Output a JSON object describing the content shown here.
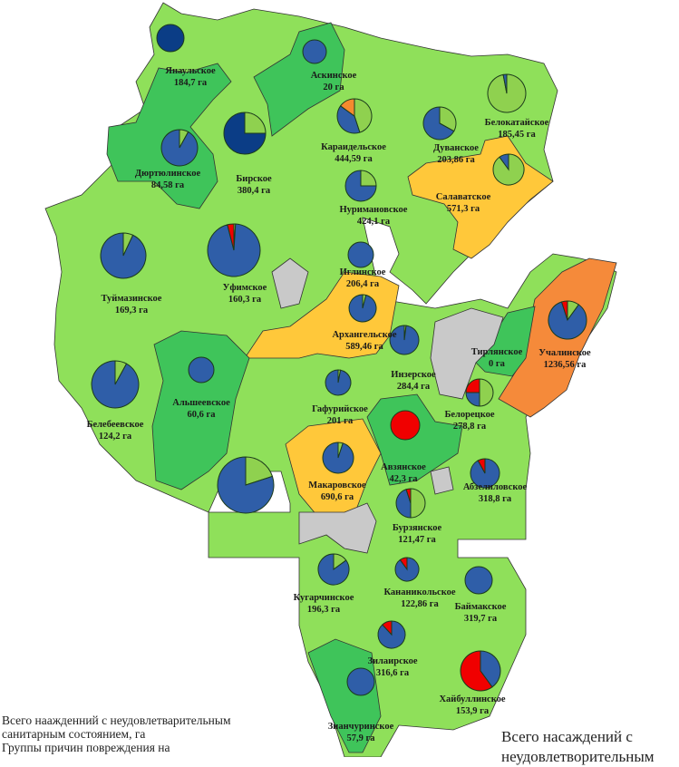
{
  "colors": {
    "navy": "#0b3d86",
    "blue": "#2f5ea8",
    "green": "#8fd14f",
    "red": "#f00000",
    "orange": "#f58a2e",
    "region_light": "#8fe05a",
    "region_medium": "#3fc45a",
    "region_yellow": "#ffc83a",
    "region_orange": "#f58a3a",
    "region_gray": "#c9c9c9"
  },
  "districts": [
    {
      "name": "Янаульское",
      "area": "184,7 га",
      "pie": [
        {
          "c": "navy",
          "v": 100
        }
      ]
    },
    {
      "name": "Аскинское",
      "area": "20 га",
      "pie": [
        {
          "c": "blue",
          "v": 100
        }
      ]
    },
    {
      "name": "Дюртюлинское",
      "area": "84,58 га",
      "pie": [
        {
          "c": "green",
          "v": 8
        },
        {
          "c": "blue",
          "v": 92
        }
      ]
    },
    {
      "name": "Бирское",
      "area": "380,4 га",
      "pie": [
        {
          "c": "green",
          "v": 25
        },
        {
          "c": "navy",
          "v": 75
        }
      ]
    },
    {
      "name": "Караидельское",
      "area": "444,59 га",
      "pie": [
        {
          "c": "green",
          "v": 45
        },
        {
          "c": "blue",
          "v": 40
        },
        {
          "c": "orange",
          "v": 15
        }
      ]
    },
    {
      "name": "Дуванское",
      "area": "203,86 га",
      "pie": [
        {
          "c": "green",
          "v": 33
        },
        {
          "c": "blue",
          "v": 67
        }
      ]
    },
    {
      "name": "Белокатайское",
      "area": "185,45 га",
      "pie": [
        {
          "c": "green",
          "v": 97
        },
        {
          "c": "blue",
          "v": 3
        }
      ]
    },
    {
      "name": "Салаватское",
      "area": "571,3 га",
      "pie": [
        {
          "c": "green",
          "v": 90
        },
        {
          "c": "blue",
          "v": 10
        }
      ]
    },
    {
      "name": "Нуримановское",
      "area": "424,1 га",
      "pie": [
        {
          "c": "green",
          "v": 25
        },
        {
          "c": "blue",
          "v": 75
        }
      ]
    },
    {
      "name": "Иглинское",
      "area": "206,4 га",
      "pie": [
        {
          "c": "blue",
          "v": 100
        }
      ]
    },
    {
      "name": "Уфимское",
      "area": "160,3 га",
      "pie": [
        {
          "c": "green",
          "v": 1
        },
        {
          "c": "blue",
          "v": 95
        },
        {
          "c": "red",
          "v": 4
        }
      ]
    },
    {
      "name": "Туймазинское",
      "area": "169,3 га",
      "pie": [
        {
          "c": "green",
          "v": 7
        },
        {
          "c": "blue",
          "v": 93
        }
      ]
    },
    {
      "name": "Архангельское",
      "area": "589,46 га",
      "pie": [
        {
          "c": "green",
          "v": 4
        },
        {
          "c": "blue",
          "v": 96
        }
      ]
    },
    {
      "name": "Инзерское",
      "area": "284,4 га",
      "pie": [
        {
          "c": "green",
          "v": 2
        },
        {
          "c": "blue",
          "v": 98
        }
      ]
    },
    {
      "name": "Тирлянское",
      "area": "0 га",
      "pie": []
    },
    {
      "name": "Учалинское",
      "area": "1236,56 га",
      "pie": [
        {
          "c": "green",
          "v": 10
        },
        {
          "c": "blue",
          "v": 85
        },
        {
          "c": "red",
          "v": 5
        }
      ]
    },
    {
      "name": "Альшеевское",
      "area": "60,6 га",
      "pie": [
        {
          "c": "blue",
          "v": 100
        }
      ]
    },
    {
      "name": "Белебеевское",
      "area": "124,2 га",
      "pie": [
        {
          "c": "green",
          "v": 8
        },
        {
          "c": "blue",
          "v": 92
        }
      ]
    },
    {
      "name": "Гафурийское",
      "area": "201 га",
      "pie": [
        {
          "c": "green",
          "v": 3
        },
        {
          "c": "blue",
          "v": 97
        }
      ]
    },
    {
      "name": "Белорецкое",
      "area": "278,8 га",
      "pie": [
        {
          "c": "green",
          "v": 50
        },
        {
          "c": "blue",
          "v": 25
        },
        {
          "c": "red",
          "v": 25
        }
      ]
    },
    {
      "name": "Авзянское",
      "area": "42,3 га",
      "pie": [
        {
          "c": "red",
          "v": 100
        }
      ]
    },
    {
      "name": "Макаровское",
      "area": "690,6 га",
      "pie": [
        {
          "c": "green",
          "v": 5
        },
        {
          "c": "blue",
          "v": 95
        }
      ]
    },
    {
      "name": "",
      "area": "",
      "pie": [
        {
          "c": "green",
          "v": 20
        },
        {
          "c": "blue",
          "v": 80
        }
      ]
    },
    {
      "name": "Абзелиловское",
      "area": "318,8 га",
      "pie": [
        {
          "c": "blue",
          "v": 92
        },
        {
          "c": "red",
          "v": 8
        }
      ]
    },
    {
      "name": "Бурзянское",
      "area": "121,47 га",
      "pie": [
        {
          "c": "green",
          "v": 50
        },
        {
          "c": "blue",
          "v": 45
        },
        {
          "c": "red",
          "v": 5
        }
      ]
    },
    {
      "name": "Кугарчинское",
      "area": "196,3 га",
      "pie": [
        {
          "c": "green",
          "v": 15
        },
        {
          "c": "blue",
          "v": 85
        }
      ]
    },
    {
      "name": "Кананикольское",
      "area": "122,86 га",
      "pie": [
        {
          "c": "blue",
          "v": 90
        },
        {
          "c": "red",
          "v": 10
        }
      ]
    },
    {
      "name": "Баймакское",
      "area": "319,7 га",
      "pie": [
        {
          "c": "blue",
          "v": 100
        }
      ]
    },
    {
      "name": "Зилаирское",
      "area": "316,6 га",
      "pie": [
        {
          "c": "blue",
          "v": 88
        },
        {
          "c": "red",
          "v": 12
        }
      ]
    },
    {
      "name": "Хайбуллинское",
      "area": "153,9 га",
      "pie": [
        {
          "c": "blue",
          "v": 40
        },
        {
          "c": "red",
          "v": 60
        }
      ]
    },
    {
      "name": "Зианчуринское",
      "area": "57,9 га",
      "pie": [
        {
          "c": "blue",
          "v": 100
        }
      ]
    }
  ],
  "legend": {
    "line1": "Всего наажденний с неудовлетварительным",
    "line2": "санитарным состоянием, га",
    "line3": "Группы причин повреждения на",
    "right_line1": "Всего насаждений с",
    "right_line2": "неудовлетворительным"
  }
}
